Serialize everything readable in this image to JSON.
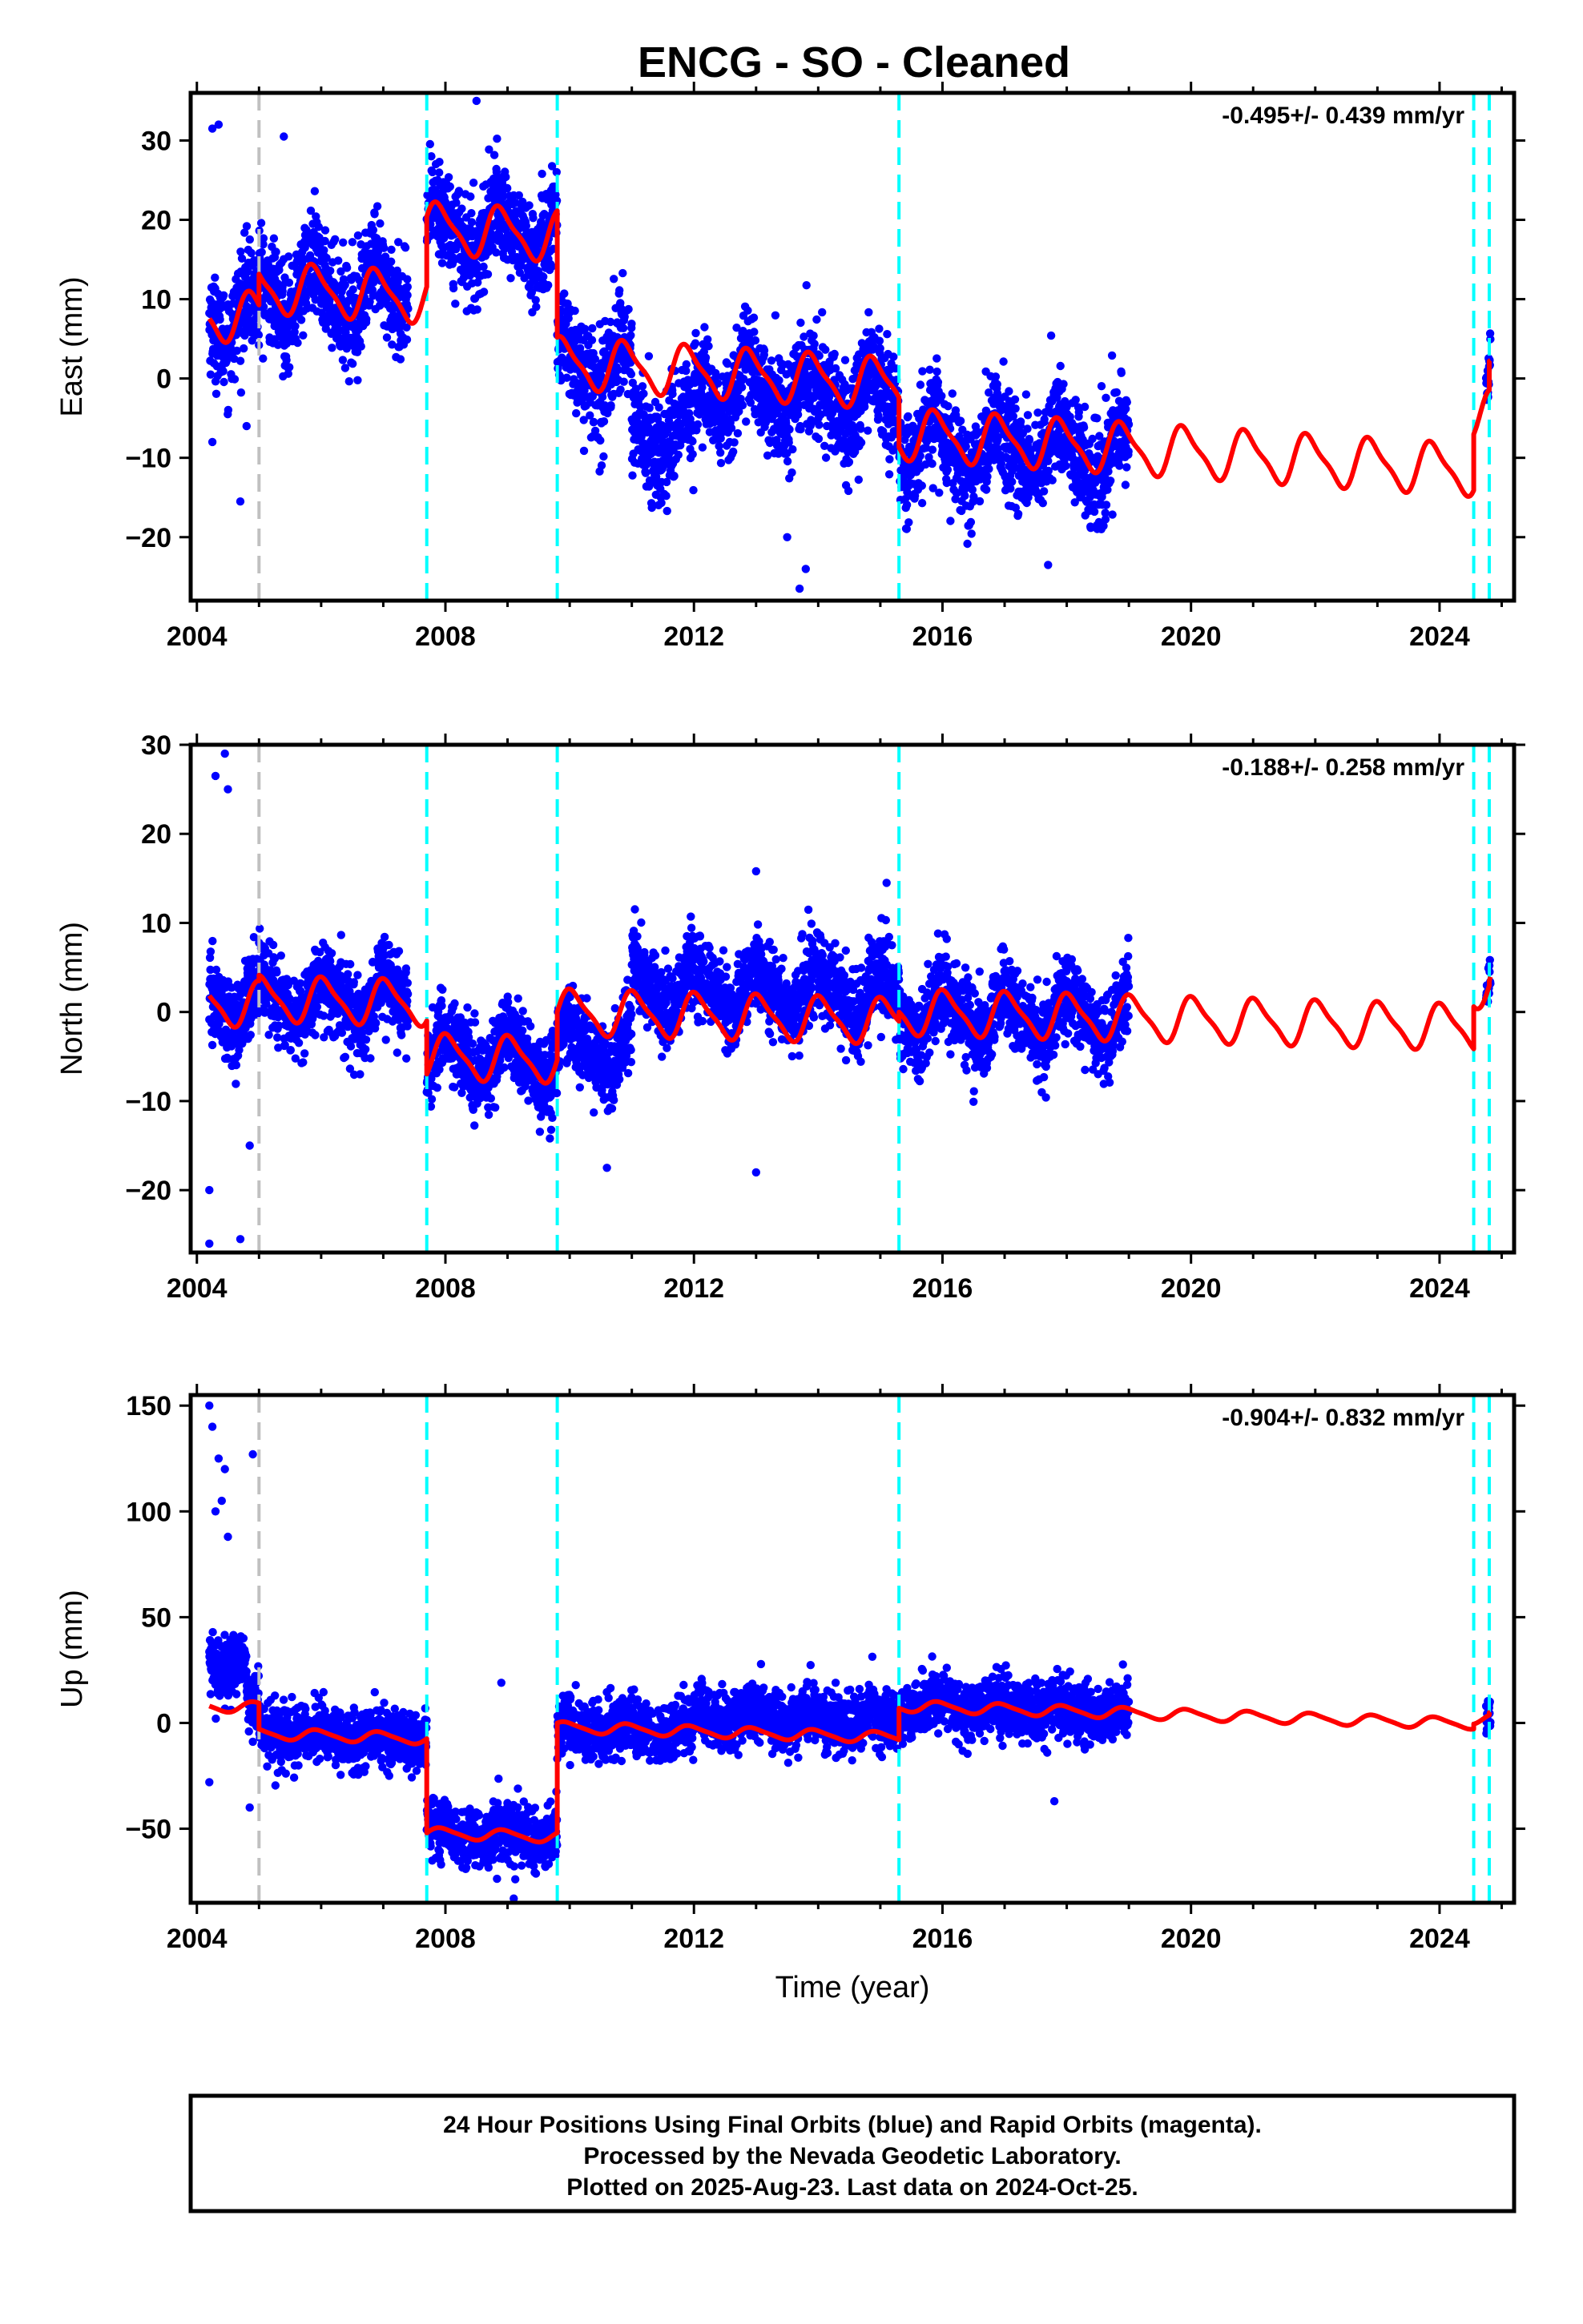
{
  "title": "ENCG  - SO - Cleaned",
  "footer": {
    "line1": "24 Hour Positions Using Final Orbits (blue) and Rapid Orbits (magenta).",
    "line2": "Processed by the Nevada Geodetic Laboratory.",
    "line3": "Plotted on 2025-Aug-23. Last data on 2024-Oct-25."
  },
  "colors": {
    "final_orbits": "#0000ff",
    "model": "#ff0000",
    "equipment_change": "#00ffff",
    "other_step": "#c0c0c0"
  },
  "chart_data": [
    {
      "type": "scatter",
      "component": "East",
      "ylabel": "East (mm)",
      "xlabel": "",
      "rate": "-0.495+/- 0.439 mm/yr",
      "xlim": [
        2003.9,
        2025.2
      ],
      "ylim": [
        -28,
        36
      ],
      "x_ticks": [
        2004,
        2008,
        2012,
        2016,
        2020,
        2024
      ],
      "y_ticks": [
        -20,
        -10,
        0,
        10,
        20,
        30
      ],
      "steps_cyan": [
        2007.7,
        2009.8,
        2015.3,
        2024.55,
        2024.8
      ],
      "steps_gray": [
        2005.0
      ],
      "data_range": [
        2004.2,
        2019.0
      ],
      "data_tail": [
        2024.75,
        2024.82
      ],
      "model": {
        "segments": [
          {
            "start": 2004.2,
            "end": 2005.0,
            "offset": 8.0
          },
          {
            "start": 2005.0,
            "end": 2007.7,
            "offset": 11.5
          },
          {
            "start": 2007.7,
            "end": 2009.8,
            "offset": 19.0
          },
          {
            "start": 2009.8,
            "end": 2015.3,
            "offset": 2.0
          },
          {
            "start": 2015.3,
            "end": 2024.55,
            "offset": -7.0
          },
          {
            "start": 2024.55,
            "end": 2024.8,
            "offset": -4.5
          },
          {
            "start": 2024.8,
            "end": 2024.82,
            "offset": -1.0
          }
        ],
        "rate": -0.495,
        "annual_amp": 3.0,
        "annual_phase": 0.35,
        "semi_amp": 0.8
      },
      "scatter": {
        "noise": 3.2,
        "extra_offsets": [
          [
            2011.0,
            2012.0,
            -8.0
          ],
          [
            2012.0,
            2015.3,
            -2.0
          ],
          [
            2015.3,
            2019.0,
            -1.0
          ]
        ]
      },
      "outliers": [
        [
          2004.25,
          31.5
        ],
        [
          2004.35,
          32.0
        ],
        [
          2004.25,
          -8.0
        ],
        [
          2004.7,
          -15.5
        ],
        [
          2004.8,
          -6.0
        ],
        [
          2005.4,
          30.5
        ],
        [
          2008.5,
          35.0
        ],
        [
          2013.7,
          -26.5
        ],
        [
          2013.8,
          -24.0
        ],
        [
          2017.7,
          -23.5
        ],
        [
          2013.5,
          -20.0
        ]
      ]
    },
    {
      "type": "scatter",
      "component": "North",
      "ylabel": "North (mm)",
      "xlabel": "",
      "rate": "-0.188+/- 0.258 mm/yr",
      "xlim": [
        2003.9,
        2025.2
      ],
      "ylim": [
        -27,
        30
      ],
      "x_ticks": [
        2004,
        2008,
        2012,
        2016,
        2020,
        2024
      ],
      "y_ticks": [
        -20,
        -10,
        0,
        10,
        20,
        30
      ],
      "steps_cyan": [
        2007.7,
        2009.8,
        2015.3,
        2024.55,
        2024.8
      ],
      "steps_gray": [
        2005.0
      ],
      "data_range": [
        2004.2,
        2019.0
      ],
      "data_tail": [
        2024.75,
        2024.82
      ],
      "model": {
        "segments": [
          {
            "start": 2004.2,
            "end": 2005.0,
            "offset": 1.0
          },
          {
            "start": 2005.0,
            "end": 2007.7,
            "offset": 1.5
          },
          {
            "start": 2007.7,
            "end": 2009.8,
            "offset": -5.0
          },
          {
            "start": 2009.8,
            "end": 2015.3,
            "offset": 0.0
          },
          {
            "start": 2015.3,
            "end": 2024.55,
            "offset": 0.0
          },
          {
            "start": 2024.55,
            "end": 2024.8,
            "offset": 3.0
          },
          {
            "start": 2024.8,
            "end": 2024.82,
            "offset": 3.5
          }
        ],
        "rate": -0.188,
        "annual_amp": 2.4,
        "annual_phase": 0.2,
        "semi_amp": 0.6
      },
      "scatter": {
        "noise": 2.3,
        "extra_offsets": [
          [
            2011.0,
            2015.3,
            3.0
          ],
          [
            2009.8,
            2011.0,
            -4.0
          ]
        ]
      },
      "outliers": [
        [
          2004.3,
          26.5
        ],
        [
          2004.45,
          29.0
        ],
        [
          2004.5,
          25.0
        ],
        [
          2004.2,
          -26.0
        ],
        [
          2004.7,
          -25.5
        ],
        [
          2004.2,
          -20.0
        ],
        [
          2004.85,
          -15.0
        ],
        [
          2013.0,
          -18.0
        ],
        [
          2013.0,
          15.8
        ],
        [
          2015.1,
          14.5
        ],
        [
          2010.6,
          -17.5
        ]
      ]
    },
    {
      "type": "scatter",
      "component": "Up",
      "ylabel": "Up (mm)",
      "xlabel": "Time (year)",
      "rate": "-0.904+/- 0.832 mm/yr",
      "xlim": [
        2003.9,
        2025.2
      ],
      "ylim": [
        -85,
        155
      ],
      "x_ticks": [
        2004,
        2008,
        2012,
        2016,
        2020,
        2024
      ],
      "y_ticks": [
        -50,
        0,
        50,
        100,
        150
      ],
      "steps_cyan": [
        2007.7,
        2009.8,
        2015.3,
        2024.55,
        2024.8
      ],
      "steps_gray": [
        2005.0
      ],
      "data_range": [
        2004.2,
        2019.0
      ],
      "data_tail": [
        2024.75,
        2024.82
      ],
      "model": {
        "segments": [
          {
            "start": 2004.2,
            "end": 2005.0,
            "offset": 8.0
          },
          {
            "start": 2005.0,
            "end": 2007.7,
            "offset": -5.0
          },
          {
            "start": 2007.7,
            "end": 2009.8,
            "offset": -52.0
          },
          {
            "start": 2009.8,
            "end": 2015.3,
            "offset": -2.0
          },
          {
            "start": 2015.3,
            "end": 2024.55,
            "offset": 8.0
          },
          {
            "start": 2024.55,
            "end": 2024.8,
            "offset": 2.0
          },
          {
            "start": 2024.8,
            "end": 2024.82,
            "offset": 3.0
          }
        ],
        "rate": -0.904,
        "annual_amp": 2.5,
        "annual_phase": 0.3,
        "semi_amp": 0.5
      },
      "scatter": {
        "noise": 7.0,
        "extra_offsets": [
          [
            2012.0,
            2015.3,
            8.0
          ],
          [
            2004.2,
            2004.8,
            20.0
          ]
        ]
      },
      "outliers": [
        [
          2004.2,
          150.0
        ],
        [
          2004.25,
          140.0
        ],
        [
          2004.35,
          125.0
        ],
        [
          2004.45,
          120.0
        ],
        [
          2004.9,
          127.0
        ],
        [
          2004.4,
          105.0
        ],
        [
          2004.5,
          88.0
        ],
        [
          2004.3,
          100.0
        ],
        [
          2004.2,
          -28.0
        ],
        [
          2004.85,
          -40.0
        ],
        [
          2008.9,
          19.0
        ],
        [
          2009.1,
          -83.0
        ],
        [
          2017.8,
          -37.0
        ]
      ]
    }
  ]
}
